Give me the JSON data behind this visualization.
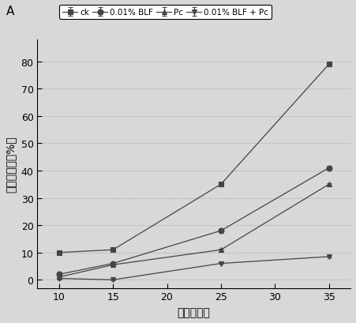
{
  "title": "A",
  "xlabel": "时间（天）",
  "ylabel": "自然腐烂率（%）",
  "x": [
    10,
    15,
    25,
    35
  ],
  "xticks": [
    10,
    15,
    20,
    25,
    30,
    35
  ],
  "yticks": [
    0,
    10,
    20,
    30,
    40,
    50,
    60,
    70,
    80
  ],
  "ylim": [
    -3,
    88
  ],
  "xlim": [
    8,
    37
  ],
  "series": [
    {
      "label": "ck",
      "y": [
        10,
        11,
        35,
        79
      ],
      "yerr": [
        0.4,
        0.4,
        0.6,
        0.8
      ],
      "color": "#444444",
      "marker": "s",
      "markerfacecolor": "#444444"
    },
    {
      "label": "0.01% BLF",
      "y": [
        2,
        6,
        18,
        41
      ],
      "yerr": [
        0.3,
        0.3,
        0.5,
        0.7
      ],
      "color": "#444444",
      "marker": "o",
      "markerfacecolor": "#444444"
    },
    {
      "label": "Pc",
      "y": [
        1,
        5.5,
        11,
        35
      ],
      "yerr": [
        0.2,
        0.3,
        0.4,
        0.5
      ],
      "color": "#444444",
      "marker": "^",
      "markerfacecolor": "#444444"
    },
    {
      "label": "0.01% BLF + Pc",
      "y": [
        0.5,
        0,
        6,
        8.5
      ],
      "yerr": [
        0.15,
        0.15,
        0.25,
        0.35
      ],
      "color": "#444444",
      "marker": "v",
      "markerfacecolor": "#444444"
    }
  ],
  "legend_fontsize": 7.5,
  "axis_fontsize": 10,
  "tick_fontsize": 9,
  "title_fontsize": 11,
  "bg_color": "#d8d8d8"
}
